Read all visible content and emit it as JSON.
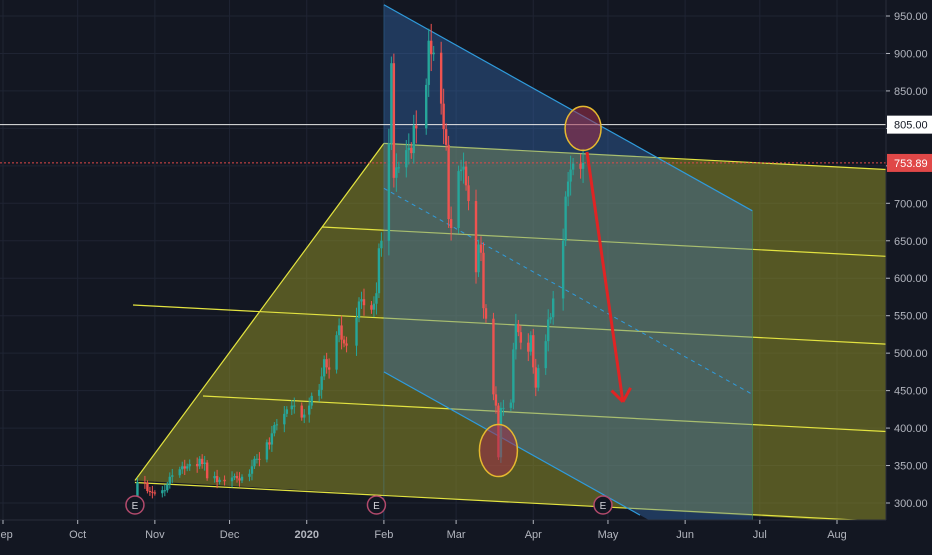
{
  "colors": {
    "background": "#131722",
    "grid": "#1f2433",
    "axis_text": "#b2b5be",
    "up_candle": "#26a69a",
    "down_candle": "#ef5350",
    "yellow_fill": "#8c8c26",
    "yellow_line": "#e3e340",
    "blue_fill": "#3a78c9",
    "blue_line": "#2f9bdc",
    "green_fill": "#3f8f6a",
    "arrow": "#e02424",
    "circle": "#e5b92f",
    "price_line_white": "#e8e8e8",
    "price_line_red": "#e04848",
    "earnings_marker": "#b24a6c"
  },
  "price_labels": [
    {
      "id": "level-805",
      "text": "805.00",
      "value": 805
    },
    {
      "id": "last-price",
      "text": "753.89",
      "value": 753.89
    }
  ],
  "earnings_marker_text": "E",
  "chart_data": {
    "type": "candlestick",
    "title": "",
    "x_axis": {
      "labels": [
        "Sep",
        "Oct",
        "Nov",
        "Dec",
        "2020",
        "Feb",
        "Mar",
        "Apr",
        "May",
        "Jun",
        "Jul",
        "Aug"
      ],
      "dates": [
        "2019-09-01",
        "2019-10-01",
        "2019-11-01",
        "2019-12-01",
        "2020-01-01",
        "2020-02-01",
        "2020-03-01",
        "2020-04-01",
        "2020-05-01",
        "2020-06-01",
        "2020-07-01",
        "2020-08-01"
      ]
    },
    "y_axis": {
      "ticks": [
        300,
        350,
        400,
        450,
        500,
        550,
        600,
        650,
        700,
        750,
        800,
        850,
        900,
        950
      ],
      "tick_labels": [
        "300.00",
        "350.00",
        "400.00",
        "450.00",
        "500.00",
        "550.00",
        "600.00",
        "650.00",
        "700.00",
        "750.00",
        "800.00",
        "850.00",
        "900.00",
        "950.00"
      ],
      "range": [
        285,
        965
      ],
      "side": "right"
    },
    "horizontal_lines": [
      {
        "value": 805,
        "style": "solid",
        "color": "#e8e8e8"
      },
      {
        "value": 753.89,
        "style": "dotted",
        "color": "#e04848"
      }
    ],
    "candles_close": [
      [
        "2019-10-24",
        299
      ],
      [
        "2019-10-25",
        328
      ],
      [
        "2019-10-28",
        327
      ],
      [
        "2019-10-29",
        316
      ],
      [
        "2019-10-30",
        315
      ],
      [
        "2019-10-31",
        314
      ],
      [
        "2019-11-01",
        313
      ],
      [
        "2019-11-04",
        317
      ],
      [
        "2019-11-05",
        317
      ],
      [
        "2019-11-06",
        325
      ],
      [
        "2019-11-07",
        335
      ],
      [
        "2019-11-08",
        337
      ],
      [
        "2019-11-11",
        345
      ],
      [
        "2019-11-12",
        349
      ],
      [
        "2019-11-13",
        346
      ],
      [
        "2019-11-14",
        349
      ],
      [
        "2019-11-15",
        352
      ],
      [
        "2019-11-18",
        349
      ],
      [
        "2019-11-19",
        359
      ],
      [
        "2019-11-20",
        352
      ],
      [
        "2019-11-21",
        354
      ],
      [
        "2019-11-22",
        333
      ],
      [
        "2019-11-25",
        336
      ],
      [
        "2019-11-26",
        328
      ],
      [
        "2019-11-27",
        331
      ],
      [
        "2019-11-29",
        329
      ],
      [
        "2019-12-02",
        334
      ],
      [
        "2019-12-03",
        336
      ],
      [
        "2019-12-04",
        333
      ],
      [
        "2019-12-05",
        330
      ],
      [
        "2019-12-06",
        335
      ],
      [
        "2019-12-09",
        339
      ],
      [
        "2019-12-10",
        349
      ],
      [
        "2019-12-11",
        359
      ],
      [
        "2019-12-12",
        359
      ],
      [
        "2019-12-13",
        358
      ],
      [
        "2019-12-16",
        381
      ],
      [
        "2019-12-17",
        378
      ],
      [
        "2019-12-18",
        393
      ],
      [
        "2019-12-19",
        404
      ],
      [
        "2019-12-20",
        405
      ],
      [
        "2019-12-23",
        419
      ],
      [
        "2019-12-24",
        425
      ],
      [
        "2019-12-26",
        430
      ],
      [
        "2019-12-27",
        430
      ],
      [
        "2019-12-30",
        414
      ],
      [
        "2019-12-31",
        418
      ],
      [
        "2020-01-02",
        430
      ],
      [
        "2020-01-03",
        443
      ],
      [
        "2020-01-06",
        451
      ],
      [
        "2020-01-07",
        469
      ],
      [
        "2020-01-08",
        492
      ],
      [
        "2020-01-09",
        481
      ],
      [
        "2020-01-10",
        478
      ],
      [
        "2020-01-13",
        524
      ],
      [
        "2020-01-14",
        537
      ],
      [
        "2020-01-15",
        518
      ],
      [
        "2020-01-16",
        513
      ],
      [
        "2020-01-17",
        510
      ],
      [
        "2020-01-21",
        547
      ],
      [
        "2020-01-22",
        569
      ],
      [
        "2020-01-23",
        572
      ],
      [
        "2020-01-24",
        564
      ],
      [
        "2020-01-27",
        558
      ],
      [
        "2020-01-28",
        566
      ],
      [
        "2020-01-29",
        580
      ],
      [
        "2020-01-30",
        640
      ],
      [
        "2020-01-31",
        650
      ],
      [
        "2020-02-03",
        780
      ],
      [
        "2020-02-04",
        887
      ],
      [
        "2020-02-05",
        734
      ],
      [
        "2020-02-06",
        748
      ],
      [
        "2020-02-07",
        748
      ],
      [
        "2020-02-10",
        771
      ],
      [
        "2020-02-11",
        774
      ],
      [
        "2020-02-12",
        767
      ],
      [
        "2020-02-13",
        804
      ],
      [
        "2020-02-14",
        800
      ],
      [
        "2020-02-18",
        858
      ],
      [
        "2020-02-19",
        917
      ],
      [
        "2020-02-20",
        899
      ],
      [
        "2020-02-21",
        901
      ],
      [
        "2020-02-24",
        833
      ],
      [
        "2020-02-25",
        799
      ],
      [
        "2020-02-26",
        778
      ],
      [
        "2020-02-27",
        679
      ],
      [
        "2020-02-28",
        667
      ],
      [
        "2020-03-02",
        743
      ],
      [
        "2020-03-03",
        745
      ],
      [
        "2020-03-04",
        749
      ],
      [
        "2020-03-05",
        724
      ],
      [
        "2020-03-06",
        703
      ],
      [
        "2020-03-09",
        608
      ],
      [
        "2020-03-10",
        645
      ],
      [
        "2020-03-11",
        634
      ],
      [
        "2020-03-12",
        560
      ],
      [
        "2020-03-13",
        546
      ],
      [
        "2020-03-16",
        445
      ],
      [
        "2020-03-17",
        430
      ],
      [
        "2020-03-18",
        361
      ],
      [
        "2020-03-19",
        427
      ],
      [
        "2020-03-20",
        427
      ],
      [
        "2020-03-23",
        434
      ],
      [
        "2020-03-24",
        505
      ],
      [
        "2020-03-25",
        539
      ],
      [
        "2020-03-26",
        528
      ],
      [
        "2020-03-27",
        514
      ],
      [
        "2020-03-30",
        502
      ],
      [
        "2020-03-31",
        524
      ],
      [
        "2020-04-01",
        481
      ],
      [
        "2020-04-02",
        454
      ],
      [
        "2020-04-03",
        480
      ],
      [
        "2020-04-06",
        516
      ],
      [
        "2020-04-07",
        545
      ],
      [
        "2020-04-08",
        548
      ],
      [
        "2020-04-09",
        573
      ],
      [
        "2020-04-13",
        650
      ],
      [
        "2020-04-14",
        709
      ],
      [
        "2020-04-15",
        729
      ],
      [
        "2020-04-16",
        745
      ],
      [
        "2020-04-17",
        753
      ],
      [
        "2020-04-20",
        746
      ],
      [
        "2020-04-21",
        753.89
      ]
    ],
    "drawings": [
      {
        "type": "pitchfork_yellow",
        "handle_points": [
          [
            "2019-10-24",
            330
          ],
          [
            "2020-02-01",
            780
          ],
          [
            "2020-02-01",
            290
          ]
        ]
      },
      {
        "type": "parallel_channel_blue",
        "upper": [
          [
            "2020-02-01",
            965
          ],
          [
            "2020-06-28",
            690
          ]
        ],
        "lower": [
          [
            "2020-02-01",
            475
          ],
          [
            "2020-06-28",
            200
          ]
        ]
      },
      {
        "type": "arrow",
        "from": [
          "2020-04-23",
          755
        ],
        "to": [
          "2020-05-07",
          435
        ]
      },
      {
        "type": "circle",
        "center": [
          "2020-04-21",
          800
        ],
        "label": ""
      },
      {
        "type": "circle",
        "center": [
          "2020-03-18",
          370
        ],
        "label": ""
      }
    ],
    "earnings_events": [
      "2019-10-24",
      "2020-01-29",
      "2020-04-29"
    ],
    "grid": true,
    "legend": "none"
  }
}
